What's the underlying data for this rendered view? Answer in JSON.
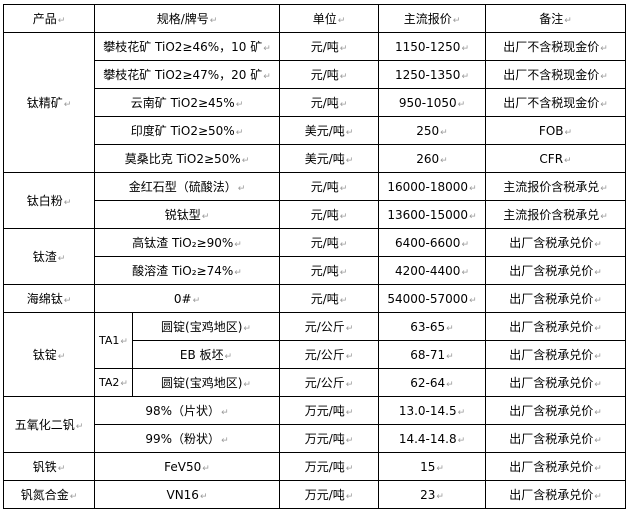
{
  "header": {
    "product": "产品",
    "spec": "规格/牌号",
    "unit": "单位",
    "price": "主流报价",
    "note": "备注"
  },
  "groups": {
    "titanium_concentrate": {
      "name": "钛精矿",
      "rows": [
        {
          "spec": "攀枝花矿 TiO2≥46%，10 矿",
          "unit": "元/吨",
          "price": "1150-1250",
          "note": "出厂不含税现金价"
        },
        {
          "spec": "攀枝花矿 TiO2≥47%，20 矿",
          "unit": "元/吨",
          "price": "1250-1350",
          "note": "出厂不含税现金价"
        },
        {
          "spec": "云南矿 TiO2≥45%",
          "unit": "元/吨",
          "price": "950-1050",
          "note": "出厂不含税现金价"
        },
        {
          "spec": "印度矿 TiO2≥50%",
          "unit": "美元/吨",
          "price": "250",
          "note": "FOB"
        },
        {
          "spec": "莫桑比克 TiO2≥50%",
          "unit": "美元/吨",
          "price": "260",
          "note": "CFR"
        }
      ]
    },
    "titanium_dioxide": {
      "name": "钛白粉",
      "rows": [
        {
          "spec": "金红石型（硫酸法）",
          "unit": "元/吨",
          "price": "16000-18000",
          "note": "主流报价含税承兑"
        },
        {
          "spec": "锐钛型",
          "unit": "元/吨",
          "price": "13600-15000",
          "note": "主流报价含税承兑"
        }
      ]
    },
    "titanium_slag": {
      "name": "钛渣",
      "rows": [
        {
          "spec": "高钛渣 TiO₂≥90%",
          "unit": "元/吨",
          "price": "6400-6600",
          "note": "出厂含税承兑价"
        },
        {
          "spec": "酸溶渣 TiO₂≥74%",
          "unit": "元/吨",
          "price": "4200-4400",
          "note": "出厂含税承兑价"
        }
      ]
    },
    "sponge_titanium": {
      "name": "海绵钛",
      "rows": [
        {
          "spec": "0#",
          "unit": "元/吨",
          "price": "54000-57000",
          "note": "出厂含税承兑价"
        }
      ]
    },
    "titanium_ingot": {
      "name": "钛锭",
      "grades": [
        "TA1",
        "TA2"
      ],
      "rows": [
        {
          "spec": "圆锭(宝鸡地区)",
          "unit": "元/公斤",
          "price": "63-65",
          "note": "出厂含税承兑价"
        },
        {
          "spec": "EB 板坯",
          "unit": "元/公斤",
          "price": "68-71",
          "note": "出厂含税承兑价"
        },
        {
          "spec": "圆锭(宝鸡地区)",
          "unit": "元/公斤",
          "price": "62-64",
          "note": "出厂含税承兑价"
        }
      ]
    },
    "vanadium_pentoxide": {
      "name": "五氧化二钒",
      "rows": [
        {
          "spec": "98%（片状）",
          "unit": "万元/吨",
          "price": "13.0-14.5",
          "note": "出厂含税承兑价"
        },
        {
          "spec": "99%（粉状）",
          "unit": "万元/吨",
          "price": "14.4-14.8",
          "note": "出厂含税承兑价"
        }
      ]
    },
    "ferrovanadium": {
      "name": "钒铁",
      "rows": [
        {
          "spec": "FeV50",
          "unit": "万元/吨",
          "price": "15",
          "note": "出厂含税承兑价"
        }
      ]
    },
    "vanadium_nitrogen": {
      "name": "钒氮合金",
      "rows": [
        {
          "spec": "VN16",
          "unit": "万元/吨",
          "price": "23",
          "note": "出厂含税承兑价"
        }
      ]
    }
  }
}
